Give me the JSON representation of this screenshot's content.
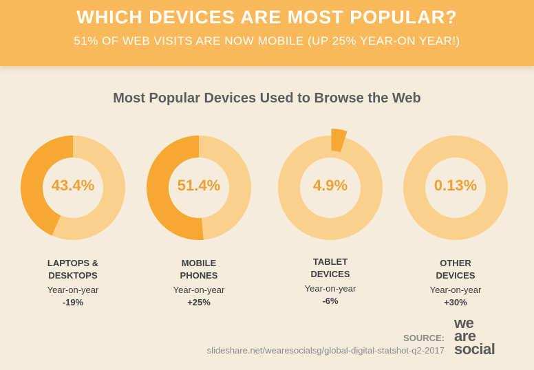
{
  "header": {
    "title": "WHICH DEVICES ARE MOST POPULAR?",
    "subtitle": "51% OF WEB VISITS ARE NOW MOBILE (UP 25% YEAR-ON YEAR!)"
  },
  "chart_data": {
    "type": "pie",
    "title": "Most Popular Devices Used to Browse the Web",
    "colors": {
      "highlight": "#f7a833",
      "remainder": "#fbcf8c"
    },
    "charts": [
      {
        "label_line1": "LAPTOPS &",
        "label_line2": "DESKTOPS",
        "value": 43.4,
        "value_label": "43.4%",
        "yoy_text": "Year-on-year",
        "yoy": "-19%"
      },
      {
        "label_line1": "MOBILE",
        "label_line2": "PHONES",
        "value": 51.4,
        "value_label": "51.4%",
        "yoy_text": "Year-on-year",
        "yoy": "+25%"
      },
      {
        "label_line1": "TABLET",
        "label_line2": "DEVICES",
        "value": 4.9,
        "value_label": "4.9%",
        "yoy_text": "Year-on-year",
        "yoy": "-6%"
      },
      {
        "label_line1": "OTHER",
        "label_line2": "DEVICES",
        "value": 0.13,
        "value_label": "0.13%",
        "yoy_text": "Year-on-year",
        "yoy": "+30%"
      }
    ]
  },
  "footer": {
    "source_label": "SOURCE:",
    "source_url": "slideshare.net/wearesocialsg/global-digital-statshot-q2-2017",
    "logo_line1": "we",
    "logo_line2": "are",
    "logo_line3": "social"
  }
}
